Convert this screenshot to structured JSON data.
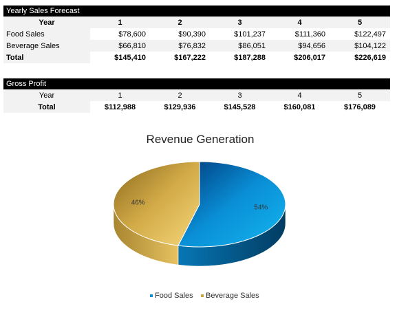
{
  "forecast": {
    "title": "Yearly Sales Forecast",
    "header": [
      "Year",
      "1",
      "2",
      "3",
      "4",
      "5"
    ],
    "rows": [
      {
        "label": "Food Sales",
        "values": [
          "$78,600",
          "$90,390",
          "$101,237",
          "$111,360",
          "$122,497"
        ]
      },
      {
        "label": "Beverage Sales",
        "values": [
          "$66,810",
          "$76,832",
          "$86,051",
          "$94,656",
          "$104,122"
        ]
      }
    ],
    "total": {
      "label": "Total",
      "values": [
        "$145,410",
        "$167,222",
        "$187,288",
        "$206,017",
        "$226,619"
      ]
    }
  },
  "gross_profit": {
    "title": "Gross Profit",
    "header": [
      "Year",
      "1",
      "2",
      "3",
      "4",
      "5"
    ],
    "total": {
      "label": "Total",
      "values": [
        "$112,988",
        "$129,936",
        "$145,528",
        "$160,081",
        "$176,089"
      ]
    }
  },
  "chart_data": {
    "type": "pie",
    "title": "Revenue Generation",
    "categories": [
      "Food Sales",
      "Beverage Sales"
    ],
    "values": [
      54,
      46
    ],
    "labels": [
      "54%",
      "46%"
    ],
    "colors": [
      "#0a8fd6",
      "#c9a23e"
    ],
    "legend_position": "bottom",
    "style": "3d"
  }
}
